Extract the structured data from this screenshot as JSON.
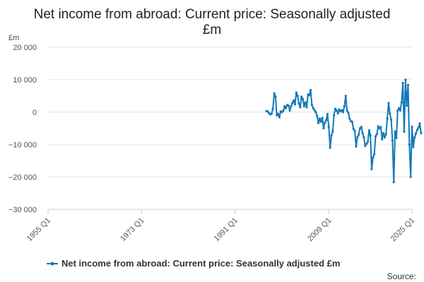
{
  "chart_data": {
    "type": "line",
    "title_lines": [
      "Net income from abroad: Current price: Seasonally adjusted",
      "£m"
    ],
    "unit_label": "£m",
    "source_label": "Source:",
    "ylim": [
      -30000,
      20000
    ],
    "yticks": [
      20000,
      10000,
      0,
      -10000,
      -20000,
      -30000
    ],
    "ytick_labels": [
      "20 000",
      "10 000",
      "0",
      "−10 000",
      "−20 000",
      "−30 000"
    ],
    "xticks": [
      "1955 Q1",
      "1973 Q1",
      "1991 Q1",
      "2009 Q1",
      "2025 Q1"
    ],
    "x_start": "1955 Q1",
    "x_end": "2025 Q1",
    "grid": true,
    "legend_position": "bottom",
    "colors": {
      "line": "#1279b8",
      "grid": "#e6e6e6",
      "axis": "#cccccc"
    },
    "series": [
      {
        "name": "Net income from abroad: Current price: Seasonally adjusted £m",
        "start": "1997 Q1",
        "values": [
          300,
          200,
          -300,
          -700,
          -500,
          1000,
          5800,
          4800,
          -1000,
          -500,
          -1600,
          200,
          0,
          400,
          1800,
          1200,
          2200,
          2000,
          500,
          1800,
          2800,
          3600,
          2400,
          6000,
          5000,
          2600,
          1500,
          4800,
          4000,
          1800,
          3000,
          1500,
          5400,
          5200,
          6800,
          2200,
          1200,
          600,
          0,
          -1200,
          -3400,
          -2000,
          -3000,
          -1800,
          -5000,
          -3200,
          -2500,
          -600,
          -4600,
          -11000,
          -7200,
          -6000,
          -1000,
          1000,
          500,
          -400,
          800,
          200,
          600,
          0,
          1800,
          5000,
          500,
          -200,
          -2000,
          -2800,
          -3000,
          -5200,
          -5800,
          -10600,
          -7800,
          -7000,
          -5000,
          -4600,
          -6500,
          -7800,
          -10400,
          -9800,
          -9200,
          -5600,
          -7200,
          -17600,
          -14000,
          -13000,
          -7500,
          -6800,
          -4400,
          -5000,
          -4600,
          -8400,
          -6500,
          -7800,
          -6800,
          -2000,
          2800,
          -400,
          -2400,
          -8800,
          -21600,
          -6000,
          -8000,
          500,
          1200,
          500,
          3000,
          9000,
          -6000,
          10000,
          2000,
          8400,
          -10000,
          -20000,
          -4500,
          -10800,
          -7800,
          -6600,
          -5500,
          -4800,
          -3500,
          -6500
        ]
      }
    ]
  }
}
